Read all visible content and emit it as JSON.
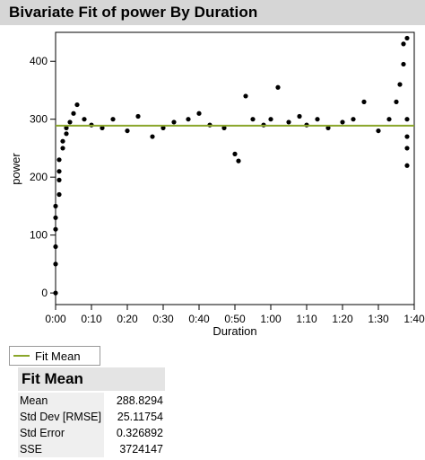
{
  "window": {
    "title": "Bivariate Fit of power By Duration"
  },
  "chart_data": {
    "type": "scatter",
    "xlabel": "Duration",
    "ylabel": "power",
    "xlim": [
      "0:00",
      "1:40"
    ],
    "ylim": [
      -20,
      450
    ],
    "x_ticks": [
      "0:00",
      "0:10",
      "0:20",
      "0:30",
      "0:40",
      "0:50",
      "1:00",
      "1:10",
      "1:20",
      "1:30",
      "1:40"
    ],
    "y_ticks": [
      0,
      100,
      200,
      300,
      400
    ],
    "grid": false,
    "point_color": "#000000",
    "fit_line": {
      "name": "Fit Mean",
      "y": 288.8294,
      "color": "#8aa62a"
    },
    "series": [
      {
        "name": "power",
        "points": [
          [
            "0:00",
            0
          ],
          [
            "0:00",
            50
          ],
          [
            "0:00",
            80
          ],
          [
            "0:00",
            110
          ],
          [
            "0:00",
            130
          ],
          [
            "0:00",
            150
          ],
          [
            "0:01",
            170
          ],
          [
            "0:01",
            195
          ],
          [
            "0:01",
            210
          ],
          [
            "0:01",
            230
          ],
          [
            "0:02",
            250
          ],
          [
            "0:02",
            262
          ],
          [
            "0:03",
            275
          ],
          [
            "0:03",
            285
          ],
          [
            "0:04",
            295
          ],
          [
            "0:05",
            310
          ],
          [
            "0:06",
            325
          ],
          [
            "0:08",
            300
          ],
          [
            "0:10",
            290
          ],
          [
            "0:13",
            285
          ],
          [
            "0:16",
            300
          ],
          [
            "0:20",
            280
          ],
          [
            "0:23",
            305
          ],
          [
            "0:27",
            270
          ],
          [
            "0:30",
            285
          ],
          [
            "0:33",
            295
          ],
          [
            "0:37",
            300
          ],
          [
            "0:40",
            310
          ],
          [
            "0:43",
            290
          ],
          [
            "0:47",
            285
          ],
          [
            "0:50",
            240
          ],
          [
            "0:51",
            228
          ],
          [
            "0:53",
            340
          ],
          [
            "0:55",
            300
          ],
          [
            "0:58",
            290
          ],
          [
            "1:00",
            300
          ],
          [
            "1:02",
            355
          ],
          [
            "1:05",
            295
          ],
          [
            "1:08",
            305
          ],
          [
            "1:10",
            290
          ],
          [
            "1:13",
            300
          ],
          [
            "1:16",
            285
          ],
          [
            "1:20",
            295
          ],
          [
            "1:23",
            300
          ],
          [
            "1:26",
            330
          ],
          [
            "1:30",
            280
          ],
          [
            "1:33",
            300
          ],
          [
            "1:35",
            330
          ],
          [
            "1:36",
            360
          ],
          [
            "1:37",
            395
          ],
          [
            "1:37",
            430
          ],
          [
            "1:38",
            440
          ],
          [
            "1:38",
            300
          ],
          [
            "1:38",
            220
          ],
          [
            "1:38",
            250
          ],
          [
            "1:38",
            270
          ]
        ]
      }
    ]
  },
  "legend": {
    "label": "Fit Mean"
  },
  "report": {
    "title": "Fit Mean",
    "rows": [
      {
        "label": "Mean",
        "value": "288.8294"
      },
      {
        "label": "Std Dev [RMSE]",
        "value": "25.11754"
      },
      {
        "label": "Std Error",
        "value": "0.326892"
      },
      {
        "label": "SSE",
        "value": "3724147"
      }
    ]
  }
}
